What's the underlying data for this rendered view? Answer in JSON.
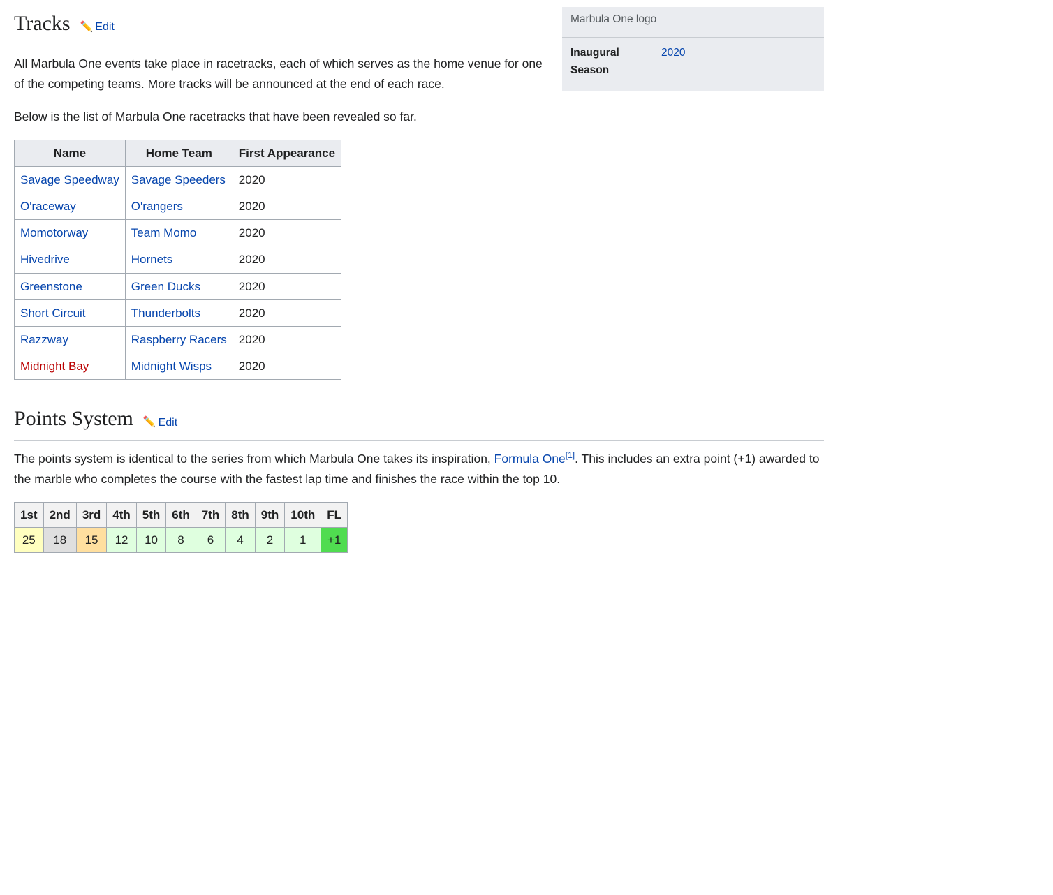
{
  "infobox": {
    "caption": "Marbula One logo",
    "rows": [
      {
        "label": "Inaugural Season",
        "value": "2020",
        "link": true
      }
    ]
  },
  "sections": {
    "tracks": {
      "heading": "Tracks",
      "edit_label": "Edit",
      "paragraphs": [
        "All Marbula One events take place in racetracks, each of which serves as the home venue for one of the competing teams. More tracks will be announced at the end of each race.",
        "Below is the list of Marbula One racetracks that have been revealed so far."
      ],
      "table": {
        "columns": [
          "Name",
          "Home Team",
          "First Appearance"
        ],
        "rows": [
          {
            "name": "Savage Speedway",
            "name_red": false,
            "team": "Savage Speeders",
            "year": "2020"
          },
          {
            "name": "O'raceway",
            "name_red": false,
            "team": "O'rangers",
            "year": "2020"
          },
          {
            "name": "Momotorway",
            "name_red": false,
            "team": "Team Momo",
            "year": "2020"
          },
          {
            "name": "Hivedrive",
            "name_red": false,
            "team": "Hornets",
            "year": "2020"
          },
          {
            "name": "Greenstone",
            "name_red": false,
            "team": "Green Ducks",
            "year": "2020"
          },
          {
            "name": "Short Circuit",
            "name_red": false,
            "team": "Thunderbolts",
            "year": "2020"
          },
          {
            "name": "Razzway",
            "name_red": false,
            "team": "Raspberry Racers",
            "year": "2020"
          },
          {
            "name": "Midnight Bay",
            "name_red": true,
            "team": "Midnight Wisps",
            "year": "2020"
          }
        ]
      }
    },
    "points": {
      "heading": "Points System",
      "edit_label": "Edit",
      "paragraph_before_link": "The points system is identical to the series from which Marbula One takes its inspiration, ",
      "link_text": "Formula One",
      "ref_label": "[1]",
      "paragraph_after_link": ". This includes an extra point (+1) awarded to the marble who completes the course with the fastest lap time and finishes the race within the top 10.",
      "table": {
        "positions": [
          "1st",
          "2nd",
          "3rd",
          "4th",
          "5th",
          "6th",
          "7th",
          "8th",
          "9th",
          "10th",
          "FL"
        ],
        "points": [
          "25",
          "18",
          "15",
          "12",
          "10",
          "8",
          "6",
          "4",
          "2",
          "1",
          "+1"
        ],
        "colors": [
          "#ffffbf",
          "#dfdfdf",
          "#ffdf9f",
          "#dfffdf",
          "#dfffdf",
          "#dfffdf",
          "#dfffdf",
          "#dfffdf",
          "#dfffdf",
          "#dfffdf",
          "#50dc50"
        ]
      }
    }
  }
}
